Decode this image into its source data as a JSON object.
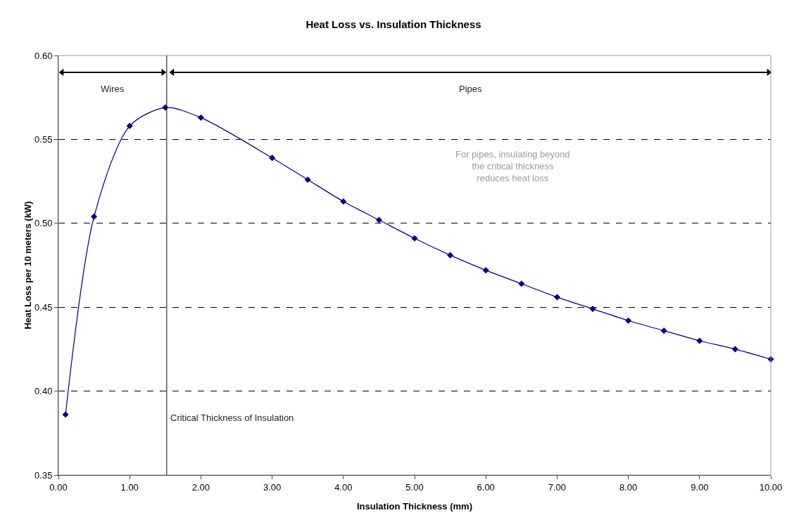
{
  "chart_data": {
    "type": "line",
    "title": "Heat Loss vs. Insulation Thickness",
    "xlabel": "Insulation Thickness (mm)",
    "ylabel": "Heat Loss per 10 meters (kW)",
    "x": [
      0.1,
      0.5,
      1.0,
      1.5,
      2.0,
      3.0,
      3.5,
      4.0,
      4.5,
      5.0,
      5.5,
      6.0,
      6.5,
      7.0,
      7.5,
      8.0,
      8.5,
      9.0,
      9.5,
      10.0
    ],
    "series": [
      {
        "color": "#000080",
        "values": [
          0.386,
          0.504,
          0.558,
          0.569,
          0.563,
          0.539,
          0.526,
          0.513,
          0.502,
          0.491,
          0.481,
          0.472,
          0.464,
          0.456,
          0.449,
          0.442,
          0.436,
          0.43,
          0.425,
          0.419
        ]
      },
      {
        "name": "Wires",
        "color": "#000000",
        "x": [
          0.05,
          1.47
        ],
        "values": [
          0.59,
          0.59
        ],
        "marker": "triangle"
      },
      {
        "name": "Pipes",
        "color": "#000000",
        "x": [
          1.6,
          9.97
        ],
        "values": [
          0.59,
          0.59
        ],
        "marker": "triangle"
      }
    ],
    "xlim": [
      0,
      10
    ],
    "ylim": [
      0.35,
      0.6
    ],
    "xticks": [
      {
        "value": 0,
        "label": "0.00"
      },
      {
        "value": 1,
        "label": "1.00"
      },
      {
        "value": 2,
        "label": "2.00"
      },
      {
        "value": 3,
        "label": "3.00"
      },
      {
        "value": 4,
        "label": "4.00"
      },
      {
        "value": 5,
        "label": "5.00"
      },
      {
        "value": 6,
        "label": "6.00"
      },
      {
        "value": 7,
        "label": "7.00"
      },
      {
        "value": 8,
        "label": "8.00"
      },
      {
        "value": 9,
        "label": "9.00"
      },
      {
        "value": 10,
        "label": "10.00"
      }
    ],
    "yticks": [
      {
        "value": 0.35,
        "label": "0.35"
      },
      {
        "value": 0.4,
        "label": "0.40"
      },
      {
        "value": 0.45,
        "label": "0.45"
      },
      {
        "value": 0.5,
        "label": "0.50"
      },
      {
        "value": 0.55,
        "label": "0.55"
      },
      {
        "value": 0.6,
        "label": "0.60"
      }
    ],
    "ref_lines": [
      {
        "axis": "x",
        "value": 1.52,
        "label": "Critical Thickness of Insulation",
        "color": "#000000"
      }
    ],
    "annotations": [
      "For pipes, insulating beyond\nthe critical thickness\nreduces heat loss"
    ],
    "grid": "y",
    "legend": false,
    "marker": "diamond",
    "line_style": "solid"
  }
}
